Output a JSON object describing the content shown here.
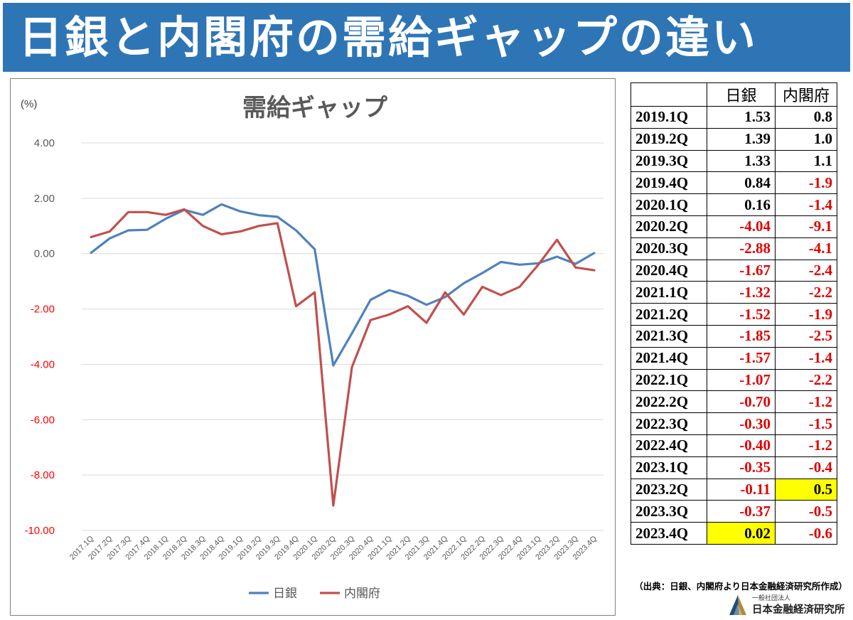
{
  "title": "日銀と内閣府の需給ギャップの違い",
  "chart_data": {
    "type": "line",
    "title": "需給ギャップ",
    "ylabel": "(%)",
    "xlabel": "",
    "ylim": [
      -10,
      4
    ],
    "yticks": [
      "4.00",
      "2.00",
      "0.00",
      "-2.00",
      "-4.00",
      "-6.00",
      "-8.00",
      "-10.00"
    ],
    "negative_tick_color": "#ff0000",
    "grid": true,
    "legend_position": "bottom",
    "categories": [
      "2017.1Q",
      "2017.2Q",
      "2017.3Q",
      "2017.4Q",
      "2018.1Q",
      "2018.2Q",
      "2018.3Q",
      "2018.4Q",
      "2019.1Q",
      "2019.2Q",
      "2019.3Q",
      "2019.4Q",
      "2020.1Q",
      "2020.2Q",
      "2020.3Q",
      "2020.4Q",
      "2021.1Q",
      "2021.2Q",
      "2021.3Q",
      "2021.4Q",
      "2022.1Q",
      "2022.2Q",
      "2022.3Q",
      "2022.4Q",
      "2023.1Q",
      "2023.2Q",
      "2023.3Q",
      "2023.4Q"
    ],
    "series": [
      {
        "name": "日銀",
        "color": "#4f81bd",
        "values": [
          0.03,
          0.55,
          0.84,
          0.86,
          1.26,
          1.58,
          1.4,
          1.78,
          1.53,
          1.39,
          1.33,
          0.84,
          0.16,
          -4.04,
          -2.88,
          -1.67,
          -1.32,
          -1.52,
          -1.85,
          -1.57,
          -1.07,
          -0.7,
          -0.3,
          -0.4,
          -0.35,
          -0.11,
          -0.37,
          0.02
        ]
      },
      {
        "name": "内閣府",
        "color": "#c0504d",
        "values": [
          0.6,
          0.8,
          1.5,
          1.5,
          1.4,
          1.6,
          1.0,
          0.7,
          0.8,
          1.0,
          1.1,
          -1.9,
          -1.4,
          -9.1,
          -4.1,
          -2.4,
          -2.2,
          -1.9,
          -2.5,
          -1.4,
          -2.2,
          -1.2,
          -1.5,
          -1.2,
          -0.4,
          0.5,
          -0.5,
          -0.6
        ]
      }
    ]
  },
  "table": {
    "headers": [
      "",
      "日銀",
      "内閣府"
    ],
    "rows": [
      {
        "q": "2019.1Q",
        "boj": "1.53",
        "cao": "0.8"
      },
      {
        "q": "2019.2Q",
        "boj": "1.39",
        "cao": "1.0"
      },
      {
        "q": "2019.3Q",
        "boj": "1.33",
        "cao": "1.1"
      },
      {
        "q": "2019.4Q",
        "boj": "0.84",
        "cao": "-1.9"
      },
      {
        "q": "2020.1Q",
        "boj": "0.16",
        "cao": "-1.4"
      },
      {
        "q": "2020.2Q",
        "boj": "-4.04",
        "cao": "-9.1"
      },
      {
        "q": "2020.3Q",
        "boj": "-2.88",
        "cao": "-4.1"
      },
      {
        "q": "2020.4Q",
        "boj": "-1.67",
        "cao": "-2.4"
      },
      {
        "q": "2021.1Q",
        "boj": "-1.32",
        "cao": "-2.2"
      },
      {
        "q": "2021.2Q",
        "boj": "-1.52",
        "cao": "-1.9"
      },
      {
        "q": "2021.3Q",
        "boj": "-1.85",
        "cao": "-2.5"
      },
      {
        "q": "2021.4Q",
        "boj": "-1.57",
        "cao": "-1.4"
      },
      {
        "q": "2022.1Q",
        "boj": "-1.07",
        "cao": "-2.2"
      },
      {
        "q": "2022.2Q",
        "boj": "-0.70",
        "cao": "-1.2"
      },
      {
        "q": "2022.3Q",
        "boj": "-0.30",
        "cao": "-1.5"
      },
      {
        "q": "2022.4Q",
        "boj": "-0.40",
        "cao": "-1.2"
      },
      {
        "q": "2023.1Q",
        "boj": "-0.35",
        "cao": "-0.4"
      },
      {
        "q": "2023.2Q",
        "boj": "-0.11",
        "cao": "0.5",
        "highlight": "cao"
      },
      {
        "q": "2023.3Q",
        "boj": "-0.37",
        "cao": "-0.5"
      },
      {
        "q": "2023.4Q",
        "boj": "0.02",
        "cao": "-0.6",
        "highlight": "boj"
      }
    ],
    "highlight_color": "#ffff00",
    "negative_color": "#e00000"
  },
  "source": "（出典：日銀、内閣府より日本金融経済研究所作成）",
  "logo": {
    "small_text": "一般社団法人",
    "main_text": "日本金融経済研究所",
    "icon": "institute-logo-icon"
  }
}
